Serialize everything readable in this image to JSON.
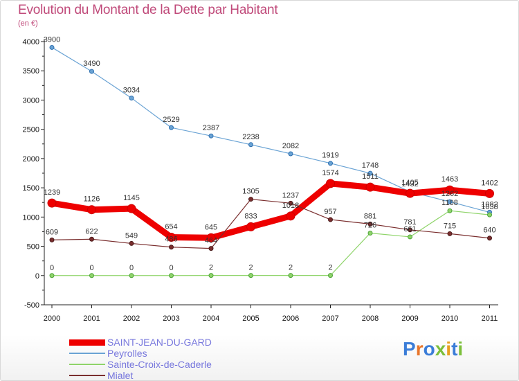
{
  "title": "Evolution du Montant de la Dette par Habitant",
  "unit_label": "(en €)",
  "logo_text": "Proxiti",
  "chart_data": {
    "type": "line",
    "title": "Evolution du Montant de la Dette par Habitant",
    "ylabel": "(en €)",
    "x": [
      "2000",
      "2001",
      "2002",
      "2003",
      "2004",
      "2005",
      "2006",
      "2007",
      "2008",
      "2009",
      "2010",
      "2011"
    ],
    "ylim": [
      -500,
      4000
    ],
    "yticks": [
      "-500",
      "0",
      "500",
      "1000",
      "1500",
      "2000",
      "2500",
      "3000",
      "3500",
      "4000"
    ],
    "legend_position": "bottom-left",
    "series": [
      {
        "name": "SAINT-JEAN-DU-GARD",
        "color": "#ee0000",
        "values": [
          1239,
          1126,
          1145,
          654,
          645,
          833,
          1018,
          1574,
          1511,
          1405,
          1463,
          1402
        ],
        "labels": [
          "1239",
          "1126",
          "1145",
          "654",
          "645",
          "833",
          "1018",
          "1574",
          "1511",
          "1405",
          "1463",
          "1402"
        ]
      },
      {
        "name": "Peyrolles",
        "color": "#6aa3d4",
        "values": [
          3900,
          3490,
          3034,
          2529,
          2387,
          2238,
          2082,
          1919,
          1748,
          1432,
          1262,
          1082
        ],
        "labels": [
          "3900",
          "3490",
          "3034",
          "2529",
          "2387",
          "2238",
          "2082",
          "1919",
          "1748",
          "1432",
          "1262",
          "1082"
        ]
      },
      {
        "name": "Sainte-Croix-de-Caderle",
        "color": "#8fd46a",
        "values": [
          0,
          0,
          0,
          0,
          2,
          2,
          2,
          2,
          726,
          661,
          1108,
          1038
        ],
        "labels": [
          "0",
          "0",
          "0",
          "0",
          "2",
          "2",
          "2",
          "2",
          "726",
          "661",
          "1108",
          "1038"
        ]
      },
      {
        "name": "Mialet",
        "color": "#7a2e2e",
        "values": [
          609,
          622,
          549,
          486,
          464,
          1305,
          1237,
          957,
          881,
          781,
          715,
          640
        ],
        "labels": [
          "609",
          "622",
          "549",
          "486",
          "464",
          "1305",
          "1237",
          "957",
          "881",
          "781",
          "715",
          "640"
        ]
      }
    ]
  }
}
